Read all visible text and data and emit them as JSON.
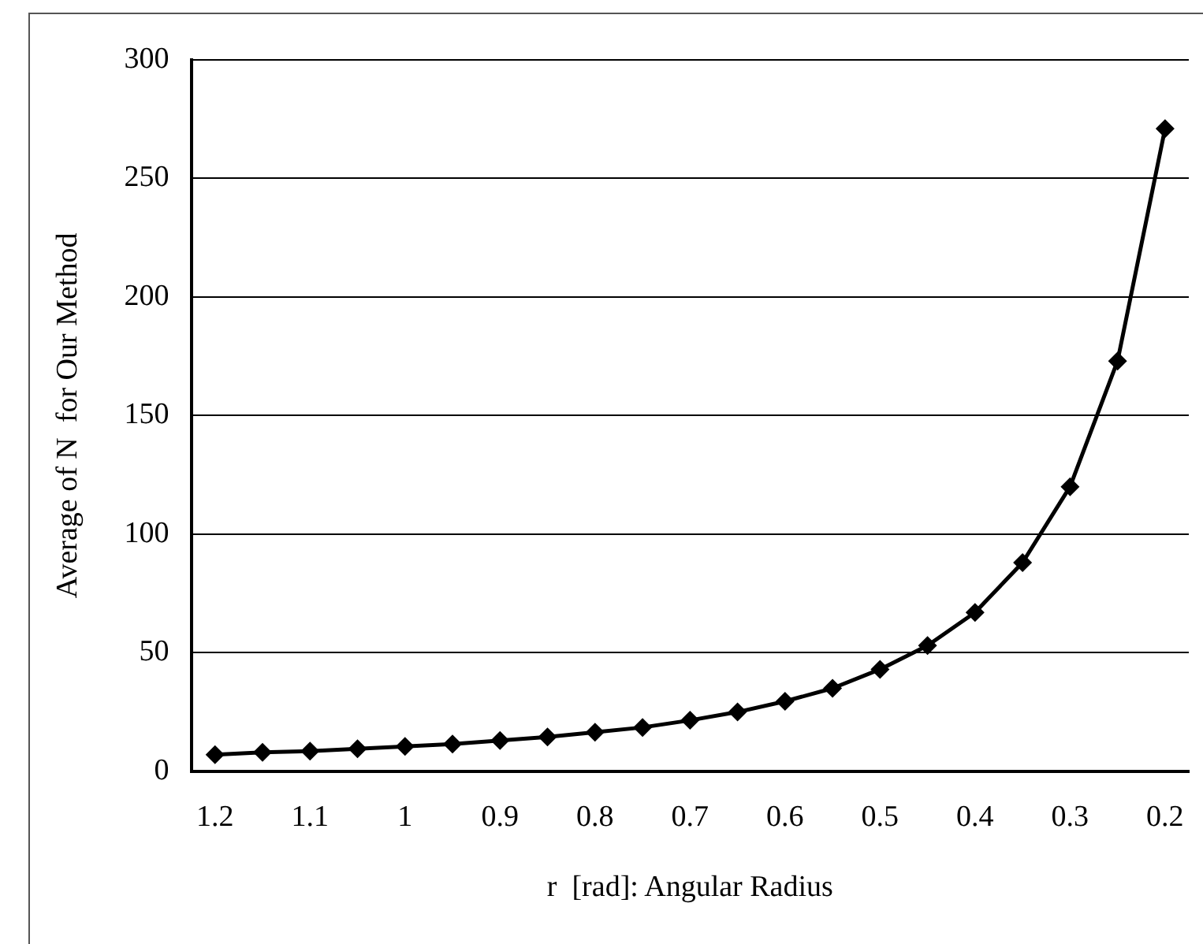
{
  "chart_data": {
    "type": "line",
    "xlabel": "r  [rad]: Angular Radius",
    "ylabel": "Average of N  for Our Method",
    "categories": [
      "1.2",
      null,
      "1.1",
      null,
      "1",
      null,
      "0.9",
      null,
      "0.8",
      null,
      "0.7",
      null,
      "0.6",
      null,
      "0.5",
      null,
      "0.4",
      null,
      "0.3",
      null,
      "0.2"
    ],
    "series": [
      {
        "color": "#000000",
        "values": [
          7,
          8,
          8.5,
          9.5,
          10.5,
          11.5,
          13,
          14.5,
          16.5,
          18.5,
          21.5,
          25,
          29.5,
          35,
          43,
          53,
          67,
          88,
          120,
          173,
          271
        ]
      }
    ],
    "ylim": [
      0,
      300
    ],
    "yticks": [
      0,
      50,
      100,
      150,
      200,
      250,
      300
    ],
    "grid": "y",
    "legend": false,
    "marker": "diamond",
    "line_style": "solid"
  }
}
